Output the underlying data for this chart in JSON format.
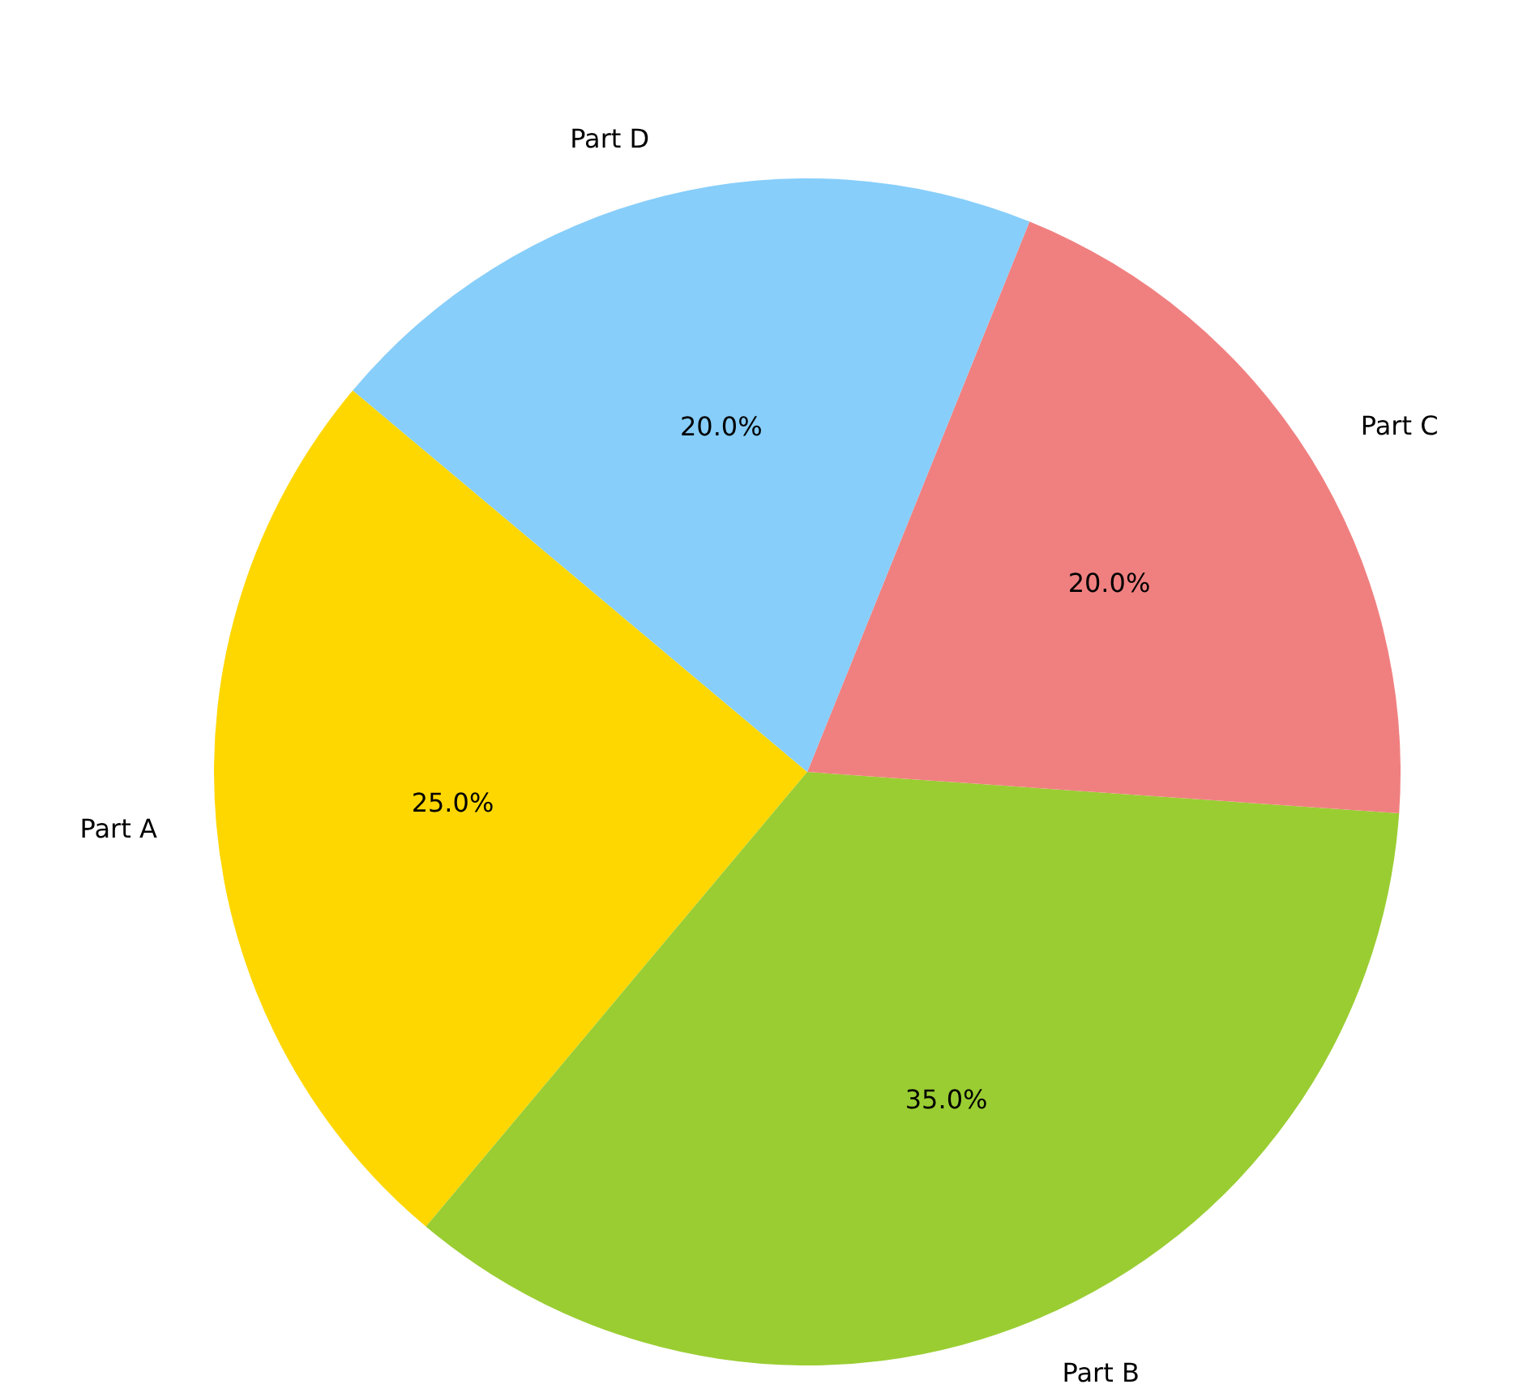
{
  "chart_data": {
    "type": "pie",
    "categories": [
      "Part A",
      "Part B",
      "Part C",
      "Part D"
    ],
    "values": [
      25,
      35,
      20,
      20
    ],
    "colors": [
      "#ffd700",
      "#9acd32",
      "#f08080",
      "#87cefa"
    ],
    "value_labels": [
      "25.0%",
      "35.0%",
      "20.0%",
      "20.0%"
    ],
    "legend": false
  }
}
